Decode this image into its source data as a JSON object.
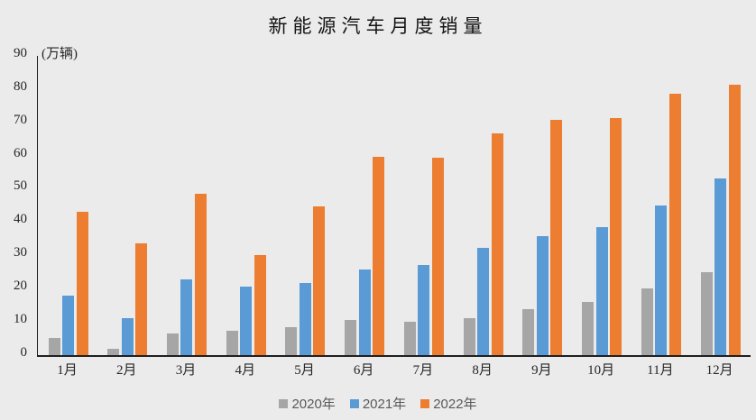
{
  "title": "新能源汽车月度销量",
  "unit_label": "(万辆)",
  "colors": {
    "background": "#EBEBEB",
    "axis_line": "#1F1F1F",
    "tick_text": "#262626",
    "legend_text": "#595959",
    "series_2020": "#A6A6A6",
    "series_2021": "#5B9BD5",
    "series_2022": "#ED7D31"
  },
  "chart_data": {
    "type": "bar",
    "title": "新能源汽车月度销量",
    "ylabel": "(万辆)",
    "xlabel": "",
    "categories": [
      "1月",
      "2月",
      "3月",
      "4月",
      "5月",
      "6月",
      "7月",
      "8月",
      "9月",
      "10月",
      "11月",
      "12月"
    ],
    "series": [
      {
        "name": "2020年",
        "color": "#A6A6A6",
        "values": [
          4.9,
          1.7,
          6.3,
          7.2,
          8.2,
          10.4,
          9.8,
          10.9,
          13.8,
          16.0,
          20.0,
          24.8
        ]
      },
      {
        "name": "2021年",
        "color": "#5B9BD5",
        "values": [
          17.9,
          11.0,
          22.6,
          20.6,
          21.7,
          25.6,
          27.1,
          32.1,
          35.7,
          38.3,
          45.0,
          53.1
        ]
      },
      {
        "name": "2022年",
        "color": "#ED7D31",
        "values": [
          43.1,
          33.4,
          48.4,
          29.9,
          44.7,
          59.6,
          59.3,
          66.6,
          70.8,
          71.4,
          78.6,
          81.4
        ]
      }
    ],
    "ylim": [
      0,
      90
    ],
    "ytick_step": 10,
    "grid": false,
    "legend_position": "bottom"
  }
}
